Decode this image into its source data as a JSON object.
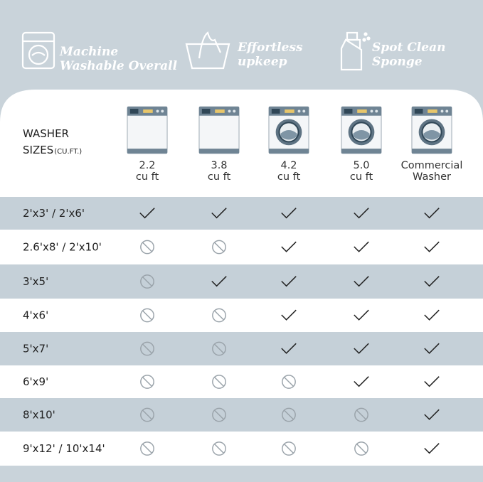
{
  "features": [
    {
      "lines": [
        "Machine",
        "Washable Overall"
      ]
    },
    {
      "lines": [
        "Effortless",
        "upkeep"
      ]
    },
    {
      "lines": [
        "Spot Clean",
        "Sponge"
      ]
    }
  ],
  "table": {
    "corner": {
      "lines": [
        "WASHER",
        "SIZES"
      ],
      "unit": "(CU.FT.)"
    },
    "columns": [
      {
        "lines": [
          "2.2",
          "cu ft"
        ]
      },
      {
        "lines": [
          "3.8",
          "cu ft"
        ]
      },
      {
        "lines": [
          "4.2",
          "cu ft"
        ]
      },
      {
        "lines": [
          "5.0",
          "cu ft"
        ]
      },
      {
        "lines": [
          "Commercial",
          "Washer"
        ]
      }
    ],
    "rows": [
      {
        "label": "2'x3'  / 2'x6'",
        "cells": [
          true,
          true,
          true,
          true,
          true
        ]
      },
      {
        "label": "2.6'x8' / 2'x10'",
        "cells": [
          false,
          false,
          true,
          true,
          true
        ]
      },
      {
        "label": "3'x5'",
        "cells": [
          false,
          true,
          true,
          true,
          true
        ]
      },
      {
        "label": "4'x6'",
        "cells": [
          false,
          false,
          true,
          true,
          true
        ]
      },
      {
        "label": "5'x7'",
        "cells": [
          false,
          false,
          true,
          true,
          true
        ]
      },
      {
        "label": "6'x9'",
        "cells": [
          false,
          false,
          false,
          true,
          true
        ]
      },
      {
        "label": "8'x10'",
        "cells": [
          false,
          false,
          false,
          false,
          true
        ]
      },
      {
        "label": "9'x12' / 10'x14'",
        "cells": [
          false,
          false,
          false,
          false,
          true
        ]
      }
    ]
  }
}
